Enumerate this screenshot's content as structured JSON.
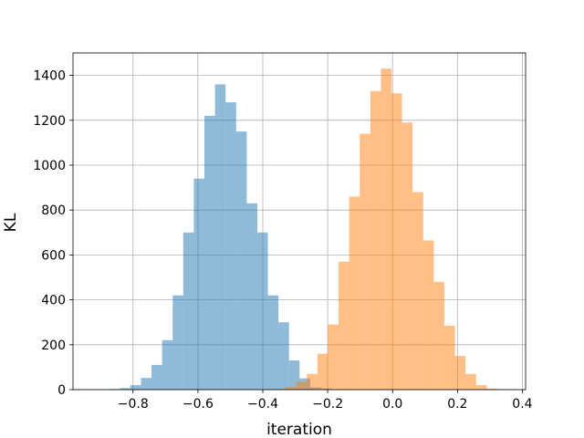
{
  "chart_data": {
    "type": "bar",
    "title": "",
    "xlabel": "iteration",
    "ylabel": "KL",
    "xlim": [
      -0.985,
      0.41
    ],
    "ylim": [
      0,
      1500
    ],
    "xticks": [
      -0.8,
      -0.6,
      -0.4,
      -0.2,
      0.0,
      0.2,
      0.4
    ],
    "xtick_labels": [
      "−0.8",
      "−0.6",
      "−0.4",
      "−0.2",
      "0.0",
      "0.2",
      "0.4"
    ],
    "yticks": [
      0,
      200,
      400,
      600,
      800,
      1000,
      1200,
      1400
    ],
    "ytick_labels": [
      "0",
      "200",
      "400",
      "600",
      "800",
      "1000",
      "1200",
      "1400"
    ],
    "grid": true,
    "legend": "none",
    "series": [
      {
        "color": "#1f77b4",
        "opacity": 0.5,
        "bin_width": 0.0326,
        "bin_start": -0.906,
        "counts": [
          1,
          3,
          7,
          20,
          52,
          110,
          220,
          420,
          700,
          940,
          1220,
          1360,
          1280,
          1150,
          830,
          700,
          420,
          300,
          130,
          50,
          10,
          5
        ]
      },
      {
        "color": "#ff7f0e",
        "opacity": 0.5,
        "bin_width": 0.0326,
        "bin_start": -0.362,
        "counts": [
          3,
          12,
          35,
          70,
          160,
          290,
          570,
          860,
          1140,
          1330,
          1430,
          1320,
          1190,
          880,
          665,
          480,
          285,
          150,
          70,
          20,
          5,
          1
        ]
      }
    ]
  }
}
